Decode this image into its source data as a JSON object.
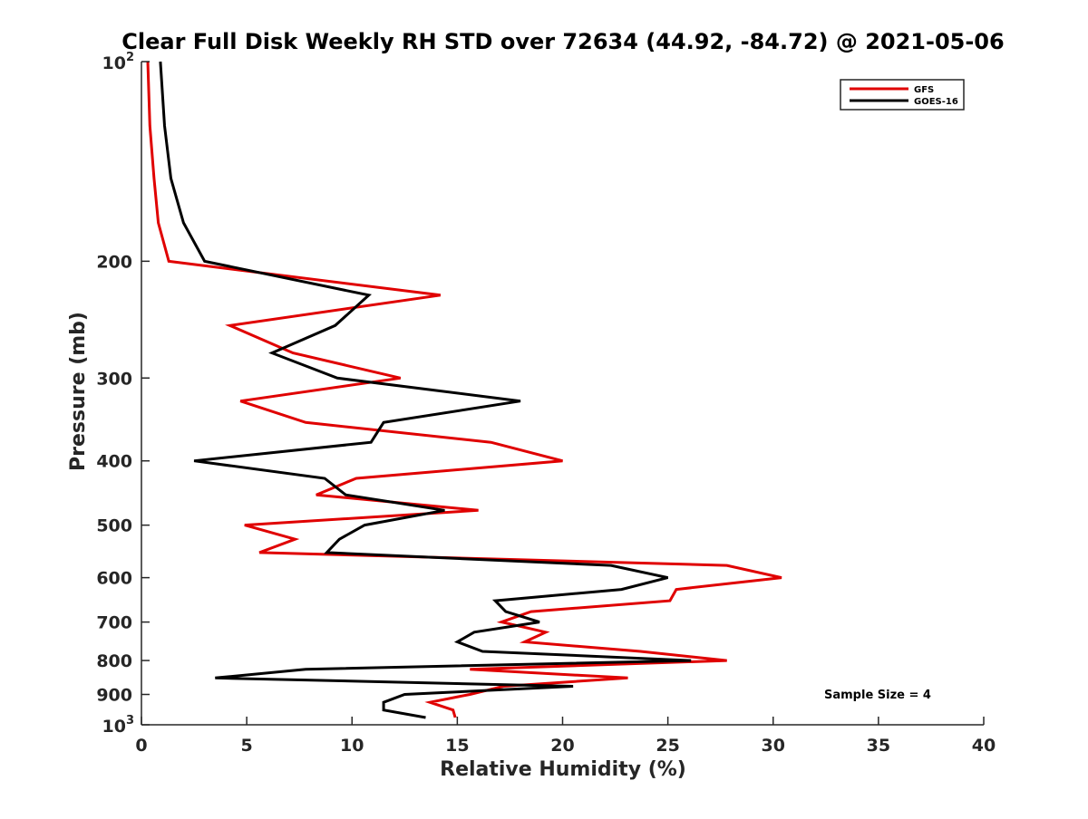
{
  "chart_data": {
    "type": "line",
    "title": "Clear Full Disk Weekly RH STD over 72634 (44.92, -84.72) @ 2021-05-06",
    "xlabel": "Relative Humidity (%)",
    "ylabel": "Pressure (mb)",
    "xlim": [
      0,
      40
    ],
    "ylim": [
      100,
      1000
    ],
    "y_scale": "log",
    "y_reversed": true,
    "x_ticks": [
      0,
      5,
      10,
      15,
      20,
      25,
      30,
      35,
      40
    ],
    "x_tick_labels": [
      "0",
      "5",
      "10",
      "15",
      "20",
      "25",
      "30",
      "35",
      "40"
    ],
    "y_ticks": [
      100,
      200,
      300,
      400,
      500,
      600,
      700,
      800,
      900,
      1000
    ],
    "y_tick_labels": [
      {
        "base": "10",
        "sup": "2"
      },
      {
        "base": "200"
      },
      {
        "base": "300"
      },
      {
        "base": "400"
      },
      {
        "base": "500"
      },
      {
        "base": "600"
      },
      {
        "base": "700"
      },
      {
        "base": "800"
      },
      {
        "base": "900"
      },
      {
        "base": "10",
        "sup": "3"
      }
    ],
    "legend_position": "top-right",
    "annotation": "Sample Size = 4",
    "series": [
      {
        "name": "GFS",
        "color": "#e00000",
        "pressure": [
          100,
          125,
          150,
          175,
          200,
          225,
          250,
          275,
          300,
          325,
          350,
          375,
          400,
          425,
          450,
          475,
          500,
          525,
          550,
          575,
          600,
          625,
          650,
          675,
          700,
          725,
          750,
          775,
          800,
          825,
          850,
          875,
          900,
          925,
          950,
          975
        ],
        "values": [
          0.3,
          0.4,
          0.6,
          0.8,
          1.3,
          14.2,
          4.2,
          7.2,
          12.3,
          4.7,
          7.8,
          16.6,
          20.0,
          10.2,
          8.3,
          16.0,
          4.9,
          7.3,
          5.6,
          27.8,
          30.4,
          25.4,
          25.1,
          18.5,
          17.1,
          19.2,
          18.2,
          23.7,
          27.8,
          15.6,
          23.1,
          17.2,
          15.6,
          13.7,
          14.8,
          14.9
        ]
      },
      {
        "name": "GOES-16",
        "color": "#000000",
        "pressure": [
          100,
          125,
          150,
          175,
          200,
          225,
          250,
          275,
          300,
          325,
          350,
          375,
          400,
          425,
          450,
          475,
          500,
          525,
          550,
          575,
          600,
          625,
          650,
          675,
          700,
          725,
          750,
          775,
          800,
          825,
          850,
          875,
          900,
          925,
          950,
          975
        ],
        "values": [
          0.9,
          1.1,
          1.4,
          2.0,
          3.0,
          10.8,
          9.2,
          6.2,
          9.3,
          18.0,
          11.5,
          10.9,
          2.5,
          8.7,
          9.7,
          14.4,
          10.6,
          9.4,
          8.8,
          22.3,
          25.0,
          22.8,
          16.8,
          17.3,
          18.9,
          15.8,
          15.0,
          16.2,
          26.1,
          7.8,
          3.5,
          20.5,
          12.5,
          11.5,
          11.5,
          13.5
        ]
      }
    ]
  }
}
